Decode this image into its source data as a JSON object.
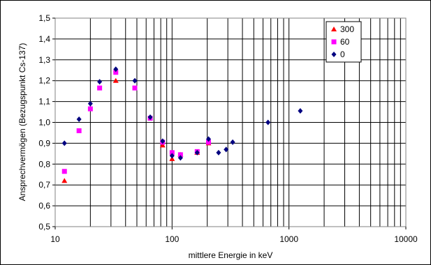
{
  "chart_data": {
    "type": "scatter",
    "xlabel": "mittlere Energie in keV",
    "ylabel": "Ansprechvermögen (Bezugspunkt Cs-137)",
    "x_scale": "log",
    "xlim": [
      10,
      10000
    ],
    "ylim": [
      0.5,
      1.5
    ],
    "x_ticks": [
      "10",
      "100",
      "1000",
      "10000"
    ],
    "y_ticks": [
      "0,5",
      "0,6",
      "0,7",
      "0,8",
      "0,9",
      "1,0",
      "1,1",
      "1,2",
      "1,3",
      "1,4",
      "1,5"
    ],
    "grid": true,
    "legend_position": "top-right",
    "series": [
      {
        "name": "300",
        "marker": "triangle",
        "color": "#ff0000",
        "points": [
          [
            12,
            0.72
          ],
          [
            33,
            1.2
          ],
          [
            83,
            0.89
          ],
          [
            100,
            0.825
          ],
          [
            118,
            0.845
          ],
          [
            164,
            0.855
          ],
          [
            205,
            0.9
          ]
        ]
      },
      {
        "name": "60",
        "marker": "square",
        "color": "#ff00ff",
        "points": [
          [
            12,
            0.765
          ],
          [
            16,
            0.96
          ],
          [
            20,
            1.065
          ],
          [
            24,
            1.165
          ],
          [
            33,
            1.24
          ],
          [
            48,
            1.165
          ],
          [
            65,
            1.02
          ],
          [
            83,
            0.905
          ],
          [
            100,
            0.855
          ],
          [
            118,
            0.845
          ],
          [
            164,
            0.86
          ],
          [
            205,
            0.905
          ]
        ]
      },
      {
        "name": "0",
        "marker": "diamond",
        "color": "#000080",
        "points": [
          [
            12,
            0.9
          ],
          [
            16,
            1.015
          ],
          [
            20,
            1.09
          ],
          [
            24,
            1.195
          ],
          [
            33,
            1.255
          ],
          [
            48,
            1.2
          ],
          [
            65,
            1.025
          ],
          [
            83,
            0.91
          ],
          [
            100,
            0.84
          ],
          [
            118,
            0.83
          ],
          [
            164,
            0.855
          ],
          [
            205,
            0.92
          ],
          [
            250,
            0.855
          ],
          [
            290,
            0.87
          ],
          [
            330,
            0.905
          ],
          [
            662,
            1.0
          ],
          [
            1250,
            1.055
          ]
        ]
      }
    ]
  }
}
